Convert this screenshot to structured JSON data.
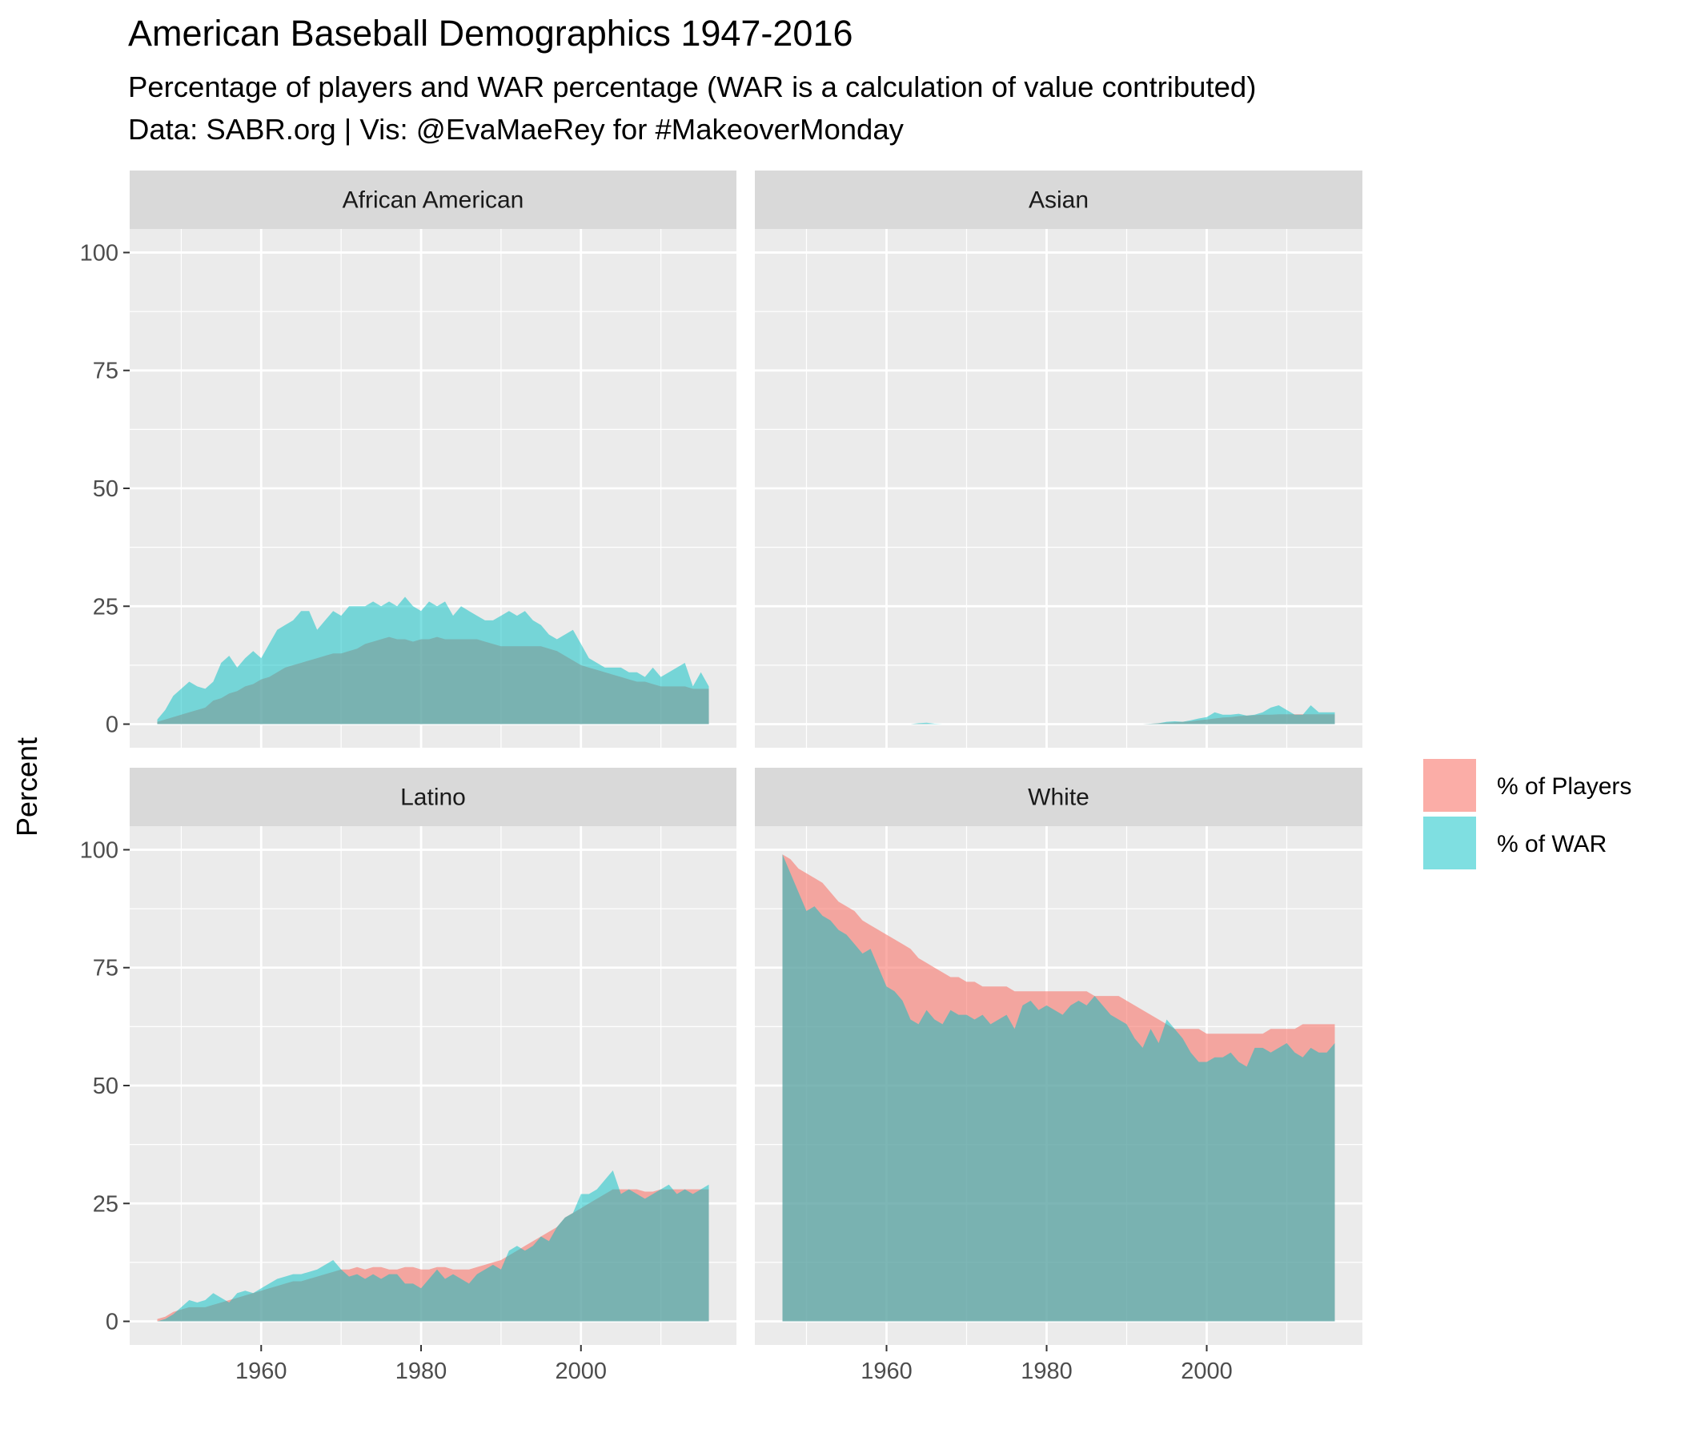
{
  "title": "American Baseball Demographics 1947-2016",
  "subtitle": "Percentage of players and WAR percentage (WAR is a calculation of value contributed)",
  "caption": "Data: SABR.org | Vis: @EvaMaeRey for #MakeoverMonday",
  "colors": {
    "players": "#F8766D",
    "war": "#00BFC4",
    "panel_bg": "#EBEBEB",
    "strip_bg": "#D9D9D9",
    "grid": "#FFFFFF"
  },
  "chart_data": {
    "type": "area",
    "facets": [
      "African American",
      "Asian",
      "Latino",
      "White"
    ],
    "ylabel": "Percent",
    "xlabel": "",
    "ylim": [
      0,
      100
    ],
    "yticks": [
      0,
      25,
      50,
      75,
      100
    ],
    "xticks": [
      1960,
      1980,
      2000
    ],
    "xlim": [
      1947,
      2016
    ],
    "grid": true,
    "legend_position": "right",
    "series_names": [
      "% of Players",
      "% of WAR"
    ],
    "years": [
      1947,
      1948,
      1949,
      1950,
      1951,
      1952,
      1953,
      1954,
      1955,
      1956,
      1957,
      1958,
      1959,
      1960,
      1961,
      1962,
      1963,
      1964,
      1965,
      1966,
      1967,
      1968,
      1969,
      1970,
      1971,
      1972,
      1973,
      1974,
      1975,
      1976,
      1977,
      1978,
      1979,
      1980,
      1981,
      1982,
      1983,
      1984,
      1985,
      1986,
      1987,
      1988,
      1989,
      1990,
      1991,
      1992,
      1993,
      1994,
      1995,
      1996,
      1997,
      1998,
      1999,
      2000,
      2001,
      2002,
      2003,
      2004,
      2005,
      2006,
      2007,
      2008,
      2009,
      2010,
      2011,
      2012,
      2013,
      2014,
      2015,
      2016
    ],
    "panels": [
      {
        "facet": "African American",
        "players": [
          0.5,
          1,
          1.5,
          2,
          2.5,
          3,
          3.5,
          5,
          5.5,
          6.5,
          7,
          8,
          8.5,
          9.5,
          10,
          11,
          12,
          12.5,
          13,
          13.5,
          14,
          14.5,
          15,
          15,
          15.5,
          16,
          17,
          17.5,
          18,
          18.5,
          18,
          18,
          17.5,
          18,
          18,
          18.5,
          18,
          18,
          18,
          18,
          18,
          17.5,
          17,
          16.5,
          16.5,
          16.5,
          16.5,
          16.5,
          16.5,
          16,
          15.5,
          14.5,
          13.5,
          12.5,
          12,
          11.5,
          11,
          10.5,
          10,
          9.5,
          9,
          9,
          8.5,
          8,
          8,
          8,
          8,
          7.5,
          7.5,
          7.5
        ],
        "war": [
          1,
          3,
          6,
          7.5,
          9,
          8,
          7.5,
          9,
          13,
          14.5,
          12,
          14,
          15.5,
          14,
          17,
          20,
          21,
          22,
          24,
          24,
          20,
          22,
          24,
          23,
          25,
          25,
          25,
          26,
          25,
          26,
          25,
          27,
          25,
          24,
          26,
          25,
          26,
          23,
          25,
          24,
          23,
          22,
          22,
          23,
          24,
          23,
          24,
          22,
          21,
          19,
          18,
          19,
          20,
          17,
          14,
          13,
          12,
          12,
          12,
          11,
          11,
          10,
          12,
          10,
          11,
          12,
          13,
          8,
          11,
          8
        ]
      },
      {
        "facet": "Asian",
        "players": [
          0,
          0,
          0,
          0,
          0,
          0,
          0,
          0,
          0,
          0,
          0,
          0,
          0,
          0,
          0,
          0,
          0,
          0.1,
          0.1,
          0,
          0,
          0,
          0,
          0,
          0,
          0,
          0,
          0,
          0,
          0,
          0,
          0,
          0,
          0,
          0,
          0,
          0,
          0,
          0,
          0,
          0,
          0,
          0,
          0,
          0,
          0,
          0.1,
          0.2,
          0.3,
          0.4,
          0.5,
          0.6,
          0.8,
          1,
          1.2,
          1.4,
          1.5,
          1.7,
          1.8,
          1.9,
          2,
          2,
          2.1,
          2.1,
          2.1,
          2.1,
          2.1,
          2.1,
          2.1,
          2.1
        ],
        "war": [
          0,
          0,
          0,
          0,
          0,
          0,
          0,
          0,
          0,
          0,
          0,
          0,
          0,
          0,
          0,
          0,
          0,
          0.2,
          0.3,
          0.1,
          0,
          0,
          0,
          0,
          0,
          0,
          0,
          0,
          0,
          0,
          0,
          0,
          0,
          0,
          0,
          0,
          0,
          0,
          0,
          0,
          0,
          0,
          0,
          0,
          0,
          0,
          0.1,
          0.2,
          0.5,
          0.6,
          0.5,
          0.8,
          1.2,
          1.5,
          2.5,
          2,
          2,
          2.2,
          1.8,
          2,
          2.5,
          3.5,
          4,
          3,
          2,
          2,
          4,
          2.5,
          2.5,
          2.5
        ]
      },
      {
        "facet": "Latino",
        "players": [
          0.5,
          1,
          2,
          2.5,
          3,
          3,
          3,
          3.5,
          4,
          4.5,
          5,
          5.5,
          6,
          6.5,
          7,
          7.5,
          8,
          8.5,
          8.5,
          9,
          9.5,
          10,
          10.5,
          11,
          11,
          11.5,
          11,
          11.5,
          11.5,
          11,
          11,
          11.5,
          11.5,
          11,
          11,
          11.5,
          11.5,
          11,
          11,
          11,
          11.5,
          12,
          12.5,
          13,
          14,
          15,
          16,
          17,
          18,
          19,
          20,
          22,
          23,
          24,
          25,
          26,
          27,
          28,
          28,
          28,
          28,
          27.5,
          27.5,
          28,
          28,
          28,
          28,
          28,
          28,
          28
        ],
        "war": [
          0,
          0.5,
          1.5,
          3,
          4.5,
          4,
          4.5,
          6,
          5,
          4,
          6,
          6.5,
          6,
          7,
          8,
          9,
          9.5,
          10,
          10,
          10.5,
          11,
          12,
          13,
          11,
          9.5,
          10,
          9,
          10,
          9,
          10,
          10,
          8,
          8,
          7,
          9,
          11,
          9,
          10,
          9,
          8,
          10,
          11,
          12,
          11,
          15,
          16,
          15,
          16,
          18,
          17,
          20,
          22,
          23,
          27,
          27,
          28,
          30,
          32,
          27,
          28,
          27,
          26,
          27,
          28,
          29,
          27,
          28,
          27,
          28,
          29
        ]
      },
      {
        "facet": "White",
        "players": [
          99,
          98,
          96,
          95,
          94,
          93,
          91,
          89,
          88,
          87,
          85,
          84,
          83,
          82,
          81,
          80,
          79,
          77,
          76,
          75,
          74,
          73,
          73,
          72,
          72,
          71,
          71,
          71,
          71,
          70,
          70,
          70,
          70,
          70,
          70,
          70,
          70,
          70,
          70,
          69,
          69,
          69,
          69,
          68,
          67,
          66,
          65,
          64,
          63,
          62,
          62,
          62,
          62,
          61,
          61,
          61,
          61,
          61,
          61,
          61,
          61,
          62,
          62,
          62,
          62,
          63,
          63,
          63,
          63,
          63
        ],
        "war": [
          99,
          95,
          91,
          87,
          88,
          86,
          85,
          83,
          82,
          80,
          78,
          79,
          75,
          71,
          70,
          68,
          64,
          63,
          66,
          64,
          63,
          66,
          65,
          65,
          64,
          65,
          63,
          64,
          65,
          62,
          67,
          68,
          66,
          67,
          66,
          65,
          67,
          68,
          67,
          69,
          67,
          65,
          64,
          63,
          60,
          58,
          62,
          59,
          64,
          62,
          60,
          57,
          55,
          55,
          56,
          56,
          57,
          55,
          54,
          58,
          58,
          57,
          58,
          59,
          57,
          56,
          58,
          57,
          57,
          59
        ]
      }
    ]
  }
}
